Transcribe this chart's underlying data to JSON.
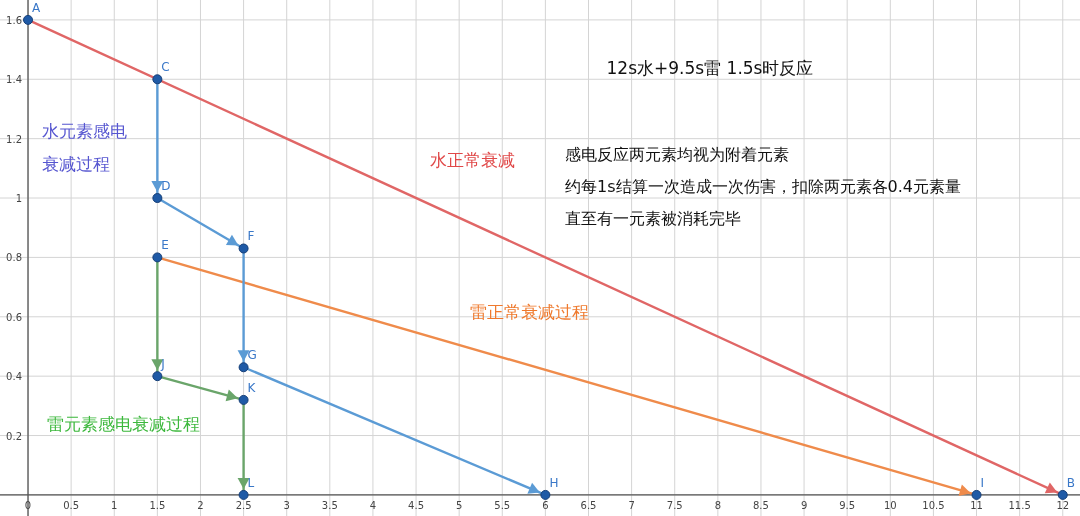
{
  "chart_data": {
    "type": "line",
    "title": "12s水+9.5s雷 1.5s时反应",
    "xlim": [
      -0.325,
      12.2
    ],
    "ylim": [
      -0.071,
      1.667
    ],
    "xticks": [
      0,
      0.5,
      1,
      1.5,
      2,
      2.5,
      3,
      3.5,
      4,
      4.5,
      5,
      5.5,
      6,
      6.5,
      7,
      7.5,
      8,
      8.5,
      9,
      9.5,
      10,
      10.5,
      11,
      11.5,
      12
    ],
    "yticks": [
      {
        "value": 0,
        "label": null
      },
      0.2,
      0.4,
      0.6,
      0.8,
      1,
      1.2,
      1.4,
      1.6
    ],
    "grid": true,
    "line_style": "solid",
    "series": [
      {
        "name": "水正常衰减",
        "color": "#e06666",
        "x": [
          0,
          12
        ],
        "values": [
          1.6,
          0
        ]
      },
      {
        "name": "雷正常衰减过程",
        "color": "#ef8b4b",
        "x": [
          1.5,
          11
        ],
        "values": [
          0.8,
          0
        ]
      },
      {
        "name": "水元素感电衰减过程",
        "color": "#5b9bd5",
        "x": [
          1.5,
          1.5,
          2.5,
          2.5,
          6
        ],
        "values": [
          1.4,
          1,
          0.83,
          0.43,
          0
        ]
      },
      {
        "name": "雷元素感电衰减过程",
        "color": "#6aa56a",
        "x": [
          1.5,
          1.5,
          2.5,
          2.5
        ],
        "values": [
          0.8,
          0.4,
          0.32,
          0
        ]
      },
      {
        "type": "scatter",
        "color": "#1f5aa6",
        "x": [
          0,
          1.5,
          1.5,
          1.5,
          2.5,
          2.5,
          1.5,
          2.5,
          2.5,
          6,
          11,
          12
        ],
        "values": [
          1.6,
          1.4,
          1,
          0.8,
          0.83,
          0.43,
          0.4,
          0.32,
          0,
          0,
          0,
          0
        ]
      }
    ],
    "annotations": [
      {
        "text": "A",
        "x": 0,
        "y": 1.6
      },
      {
        "text": "C",
        "x": 1.5,
        "y": 1.4
      },
      {
        "text": "D",
        "x": 1.5,
        "y": 1
      },
      {
        "text": "E",
        "x": 1.5,
        "y": 0.8
      },
      {
        "text": "F",
        "x": 2.5,
        "y": 0.83
      },
      {
        "text": "G",
        "x": 2.5,
        "y": 0.43
      },
      {
        "text": "J",
        "x": 1.5,
        "y": 0.4
      },
      {
        "text": "K",
        "x": 2.5,
        "y": 0.32
      },
      {
        "text": "L",
        "x": 2.5,
        "y": 0
      },
      {
        "text": "H",
        "x": 6,
        "y": 0
      },
      {
        "text": "I",
        "x": 11,
        "y": 0
      },
      {
        "text": "B",
        "x": 12,
        "y": 0
      },
      "感电反应两元素均视为附着元素",
      "约每1s结算一次造成一次伤害，扣除两元素各0.4元素量",
      "直至有一元素被消耗完毕"
    ]
  }
}
